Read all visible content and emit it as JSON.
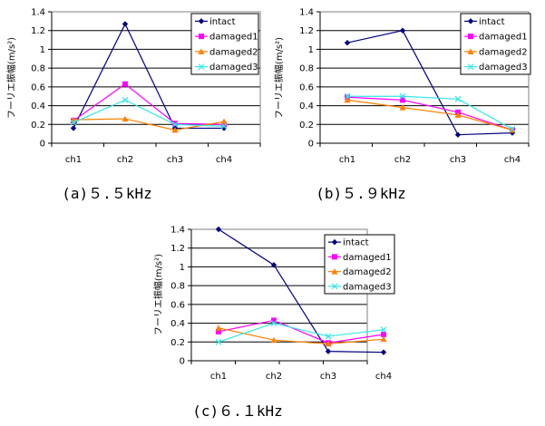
{
  "chart_data": [
    {
      "type": "line",
      "caption": "(a)５.５kHz",
      "ylabel": "フーリエ振幅(m/s²)",
      "categories": [
        "ch1",
        "ch2",
        "ch3",
        "ch4"
      ],
      "ylim": [
        0,
        1.4
      ],
      "yticks": [
        "0",
        "0.2",
        "0.4",
        "0.6",
        "0.8",
        "1",
        "1.2",
        "1.4"
      ],
      "grid": true,
      "legend_position": "top-right",
      "series": [
        {
          "name": "intact",
          "color": "#000080",
          "marker": "diamond",
          "values": [
            0.16,
            1.27,
            0.16,
            0.16
          ]
        },
        {
          "name": "damaged1",
          "color": "#ff00ff",
          "marker": "square",
          "values": [
            0.24,
            0.63,
            0.21,
            0.2
          ]
        },
        {
          "name": "damaged2",
          "color": "#ff8000",
          "marker": "triangle",
          "values": [
            0.25,
            0.26,
            0.14,
            0.23
          ]
        },
        {
          "name": "damaged3",
          "color": "#33e6e6",
          "marker": "x",
          "values": [
            0.22,
            0.46,
            0.2,
            0.18
          ]
        }
      ]
    },
    {
      "type": "line",
      "caption": "(b)５.９kHz",
      "ylabel": "フーリエ振幅(m/s²)",
      "categories": [
        "ch1",
        "ch2",
        "ch3",
        "ch4"
      ],
      "ylim": [
        0,
        1.4
      ],
      "yticks": [
        "0",
        "0.2",
        "0.4",
        "0.6",
        "0.8",
        "1",
        "1.2",
        "1.4"
      ],
      "grid": true,
      "legend_position": "top-right",
      "series": [
        {
          "name": "intact",
          "color": "#000080",
          "marker": "diamond",
          "values": [
            1.07,
            1.2,
            0.09,
            0.11
          ]
        },
        {
          "name": "damaged1",
          "color": "#ff00ff",
          "marker": "square",
          "values": [
            0.49,
            0.46,
            0.33,
            0.14
          ]
        },
        {
          "name": "damaged2",
          "color": "#ff8000",
          "marker": "triangle",
          "values": [
            0.46,
            0.38,
            0.3,
            0.14
          ]
        },
        {
          "name": "damaged3",
          "color": "#33e6e6",
          "marker": "x",
          "values": [
            0.5,
            0.5,
            0.47,
            0.15
          ]
        }
      ]
    },
    {
      "type": "line",
      "caption": "(c)６.１kHz",
      "ylabel": "フーリエ振幅(m/s²)",
      "categories": [
        "ch1",
        "ch2",
        "ch3",
        "ch4"
      ],
      "ylim": [
        0,
        1.4
      ],
      "yticks": [
        "0",
        "0.2",
        "0.4",
        "0.6",
        "0.8",
        "1",
        "1.2",
        "1.4"
      ],
      "grid": true,
      "legend_position": "top-right",
      "series": [
        {
          "name": "intact",
          "color": "#000080",
          "marker": "diamond",
          "values": [
            1.4,
            1.02,
            0.1,
            0.09
          ]
        },
        {
          "name": "damaged1",
          "color": "#ff00ff",
          "marker": "square",
          "values": [
            0.31,
            0.43,
            0.19,
            0.28
          ]
        },
        {
          "name": "damaged2",
          "color": "#ff8000",
          "marker": "triangle",
          "values": [
            0.35,
            0.22,
            0.18,
            0.23
          ]
        },
        {
          "name": "damaged3",
          "color": "#33e6e6",
          "marker": "x",
          "values": [
            0.2,
            0.4,
            0.26,
            0.33
          ]
        }
      ]
    }
  ]
}
